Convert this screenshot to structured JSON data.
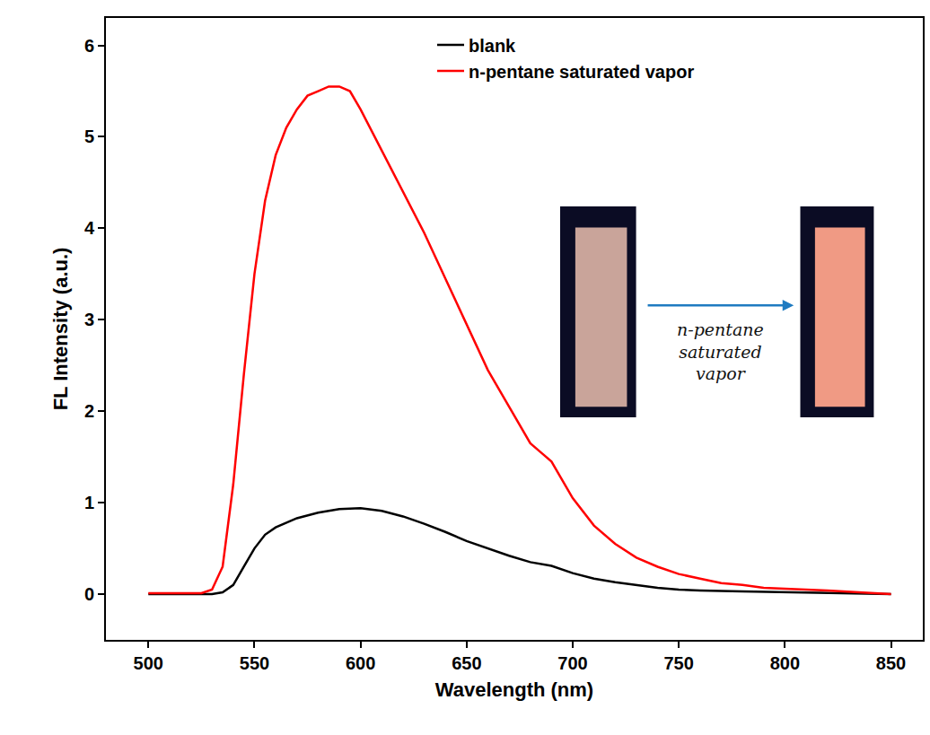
{
  "chart_data": {
    "type": "line",
    "x_label": "Wavelength (nm)",
    "y_label": "FL Intensity (a.u.)",
    "xlim": [
      480,
      865
    ],
    "ylim": [
      -0.5,
      6.3
    ],
    "xticks": [
      500,
      550,
      600,
      650,
      700,
      750,
      800,
      850
    ],
    "yticks": [
      0,
      1,
      2,
      3,
      4,
      5,
      6
    ],
    "grid": false,
    "legend": "upper right",
    "annotations": [
      {
        "text": "n-pentane saturated vapor"
      }
    ],
    "series": [
      {
        "name": "blank",
        "color": "#000000",
        "x": [
          500,
          530,
          535,
          540,
          545,
          550,
          555,
          560,
          570,
          580,
          590,
          600,
          610,
          620,
          630,
          640,
          650,
          660,
          670,
          680,
          690,
          700,
          710,
          720,
          730,
          740,
          750,
          760,
          780,
          800,
          820,
          850
        ],
        "values": [
          0,
          0,
          0.02,
          0.1,
          0.3,
          0.5,
          0.65,
          0.73,
          0.83,
          0.89,
          0.93,
          0.94,
          0.91,
          0.85,
          0.77,
          0.68,
          0.58,
          0.5,
          0.42,
          0.35,
          0.31,
          0.23,
          0.17,
          0.13,
          0.1,
          0.07,
          0.05,
          0.04,
          0.03,
          0.02,
          0.01,
          0
        ]
      },
      {
        "name": "n-pentane saturated vapor",
        "color": "#ff0000",
        "x": [
          500,
          525,
          530,
          535,
          540,
          545,
          550,
          555,
          560,
          565,
          570,
          575,
          580,
          585,
          590,
          595,
          600,
          610,
          620,
          630,
          640,
          650,
          660,
          670,
          680,
          685,
          690,
          700,
          710,
          720,
          730,
          740,
          750,
          760,
          770,
          780,
          790,
          800,
          820,
          850
        ],
        "values": [
          0.01,
          0.01,
          0.05,
          0.3,
          1.2,
          2.4,
          3.5,
          4.3,
          4.8,
          5.1,
          5.3,
          5.45,
          5.5,
          5.55,
          5.55,
          5.5,
          5.3,
          4.85,
          4.4,
          3.95,
          3.45,
          2.95,
          2.45,
          2.05,
          1.65,
          1.55,
          1.45,
          1.05,
          0.75,
          0.55,
          0.4,
          0.3,
          0.22,
          0.17,
          0.12,
          0.1,
          0.07,
          0.06,
          0.04,
          0
        ]
      }
    ]
  }
}
